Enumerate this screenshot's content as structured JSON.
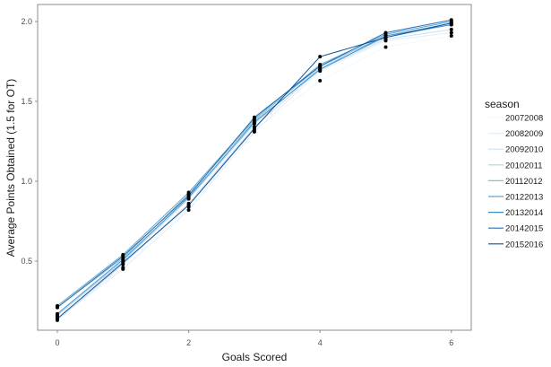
{
  "chart_data": {
    "type": "line",
    "title": "",
    "xlabel": "Goals Scored",
    "ylabel": "Average Points Obtained (1.5 for OT)",
    "x": [
      0,
      1,
      2,
      3,
      4,
      5,
      6
    ],
    "xticks": [
      "0",
      "2",
      "4",
      "6"
    ],
    "xtick_values": [
      0,
      2,
      4,
      6
    ],
    "yticks": [
      "0.5",
      "1.0",
      "1.5",
      "2.0"
    ],
    "ytick_values": [
      0.5,
      1.0,
      1.5,
      2.0
    ],
    "xlim": [
      -0.3,
      6.3
    ],
    "ylim": [
      0.07,
      2.1
    ],
    "grid": false,
    "points_markers": true,
    "legend": {
      "title": "season",
      "position": "right"
    },
    "series": [
      {
        "name": "20072008",
        "color": "#f3f8fd",
        "values": [
          0.15,
          0.46,
          0.84,
          1.32,
          1.63,
          1.84,
          1.91
        ]
      },
      {
        "name": "20082009",
        "color": "#e2eef9",
        "values": [
          0.14,
          0.45,
          0.82,
          1.31,
          1.69,
          1.88,
          1.93
        ]
      },
      {
        "name": "20092010",
        "color": "#cde0f1",
        "values": [
          0.13,
          0.48,
          0.86,
          1.34,
          1.7,
          1.89,
          1.95
        ]
      },
      {
        "name": "20102011",
        "color": "#b0d2e8",
        "values": [
          0.16,
          0.5,
          0.89,
          1.36,
          1.71,
          1.9,
          1.98
        ]
      },
      {
        "name": "20112012",
        "color": "#89bedc",
        "values": [
          0.21,
          0.52,
          0.92,
          1.38,
          1.72,
          1.91,
          1.99
        ]
      },
      {
        "name": "20122013",
        "color": "#60a6d2",
        "values": [
          0.22,
          0.54,
          0.93,
          1.39,
          1.73,
          1.92,
          2.0
        ]
      },
      {
        "name": "20132014",
        "color": "#3e8ec4",
        "values": [
          0.17,
          0.51,
          0.9,
          1.37,
          1.7,
          1.91,
          1.98
        ]
      },
      {
        "name": "20142015",
        "color": "#2171b5",
        "values": [
          0.21,
          0.53,
          0.91,
          1.4,
          1.72,
          1.93,
          2.01
        ]
      },
      {
        "name": "20152016",
        "color": "#08519c",
        "values": [
          0.14,
          0.49,
          0.85,
          1.33,
          1.78,
          1.9,
          1.99
        ]
      }
    ]
  }
}
